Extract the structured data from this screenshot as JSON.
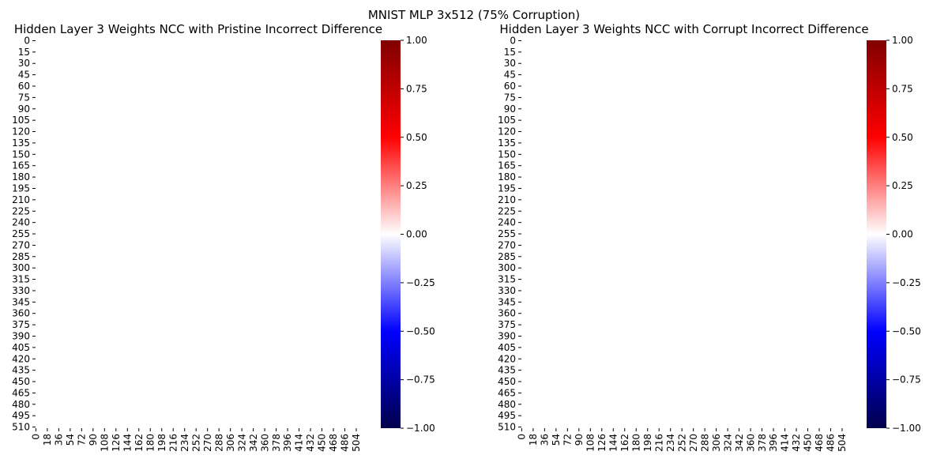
{
  "title": "MNIST MLP 3x512 (75% Corruption)",
  "colors": {
    "text": "#000000",
    "tick": "#000000",
    "heatmap_fill": "#ffffff",
    "colormap": [
      "#00004c",
      "#0000ff",
      "#ffffff",
      "#ff0000",
      "#800000"
    ]
  },
  "chart_data": [
    {
      "type": "heatmap",
      "title": "Hidden Layer 3 Weights NCC with Pristine Incorrect Difference",
      "xlabel": "",
      "ylabel": "",
      "rows": 512,
      "cols": 512,
      "value_fill": 0.0,
      "x_ticks": [
        "0",
        "18",
        "36",
        "54",
        "72",
        "90",
        "108",
        "126",
        "144",
        "162",
        "180",
        "198",
        "216",
        "234",
        "252",
        "270",
        "288",
        "306",
        "324",
        "342",
        "360",
        "378",
        "396",
        "414",
        "432",
        "450",
        "468",
        "486",
        "504"
      ],
      "y_ticks": [
        "0",
        "15",
        "30",
        "45",
        "60",
        "75",
        "90",
        "105",
        "120",
        "135",
        "150",
        "165",
        "180",
        "195",
        "210",
        "225",
        "240",
        "255",
        "270",
        "285",
        "300",
        "315",
        "330",
        "345",
        "360",
        "375",
        "390",
        "405",
        "420",
        "435",
        "450",
        "465",
        "480",
        "495",
        "510"
      ],
      "colorbar": {
        "cmap": "seismic",
        "vmin": -1.0,
        "vmax": 1.0,
        "ticks": [
          "−1.00",
          "−0.75",
          "−0.50",
          "−0.25",
          "0.00",
          "0.25",
          "0.50",
          "0.75",
          "1.00"
        ]
      }
    },
    {
      "type": "heatmap",
      "title": "Hidden Layer 3 Weights NCC with Corrupt Incorrect Difference",
      "xlabel": "",
      "ylabel": "",
      "rows": 512,
      "cols": 512,
      "value_fill": 0.0,
      "x_ticks": [
        "0",
        "18",
        "36",
        "54",
        "72",
        "90",
        "108",
        "126",
        "144",
        "162",
        "180",
        "198",
        "216",
        "234",
        "252",
        "270",
        "288",
        "306",
        "324",
        "342",
        "360",
        "378",
        "396",
        "414",
        "432",
        "450",
        "468",
        "486",
        "504"
      ],
      "y_ticks": [
        "0",
        "15",
        "30",
        "45",
        "60",
        "75",
        "90",
        "105",
        "120",
        "135",
        "150",
        "165",
        "180",
        "195",
        "210",
        "225",
        "240",
        "255",
        "270",
        "285",
        "300",
        "315",
        "330",
        "345",
        "360",
        "375",
        "390",
        "405",
        "420",
        "435",
        "450",
        "465",
        "480",
        "495",
        "510"
      ],
      "colorbar": {
        "cmap": "seismic",
        "vmin": -1.0,
        "vmax": 1.0,
        "ticks": [
          "−1.00",
          "−0.75",
          "−0.50",
          "−0.25",
          "0.00",
          "0.25",
          "0.50",
          "0.75",
          "1.00"
        ]
      }
    }
  ]
}
